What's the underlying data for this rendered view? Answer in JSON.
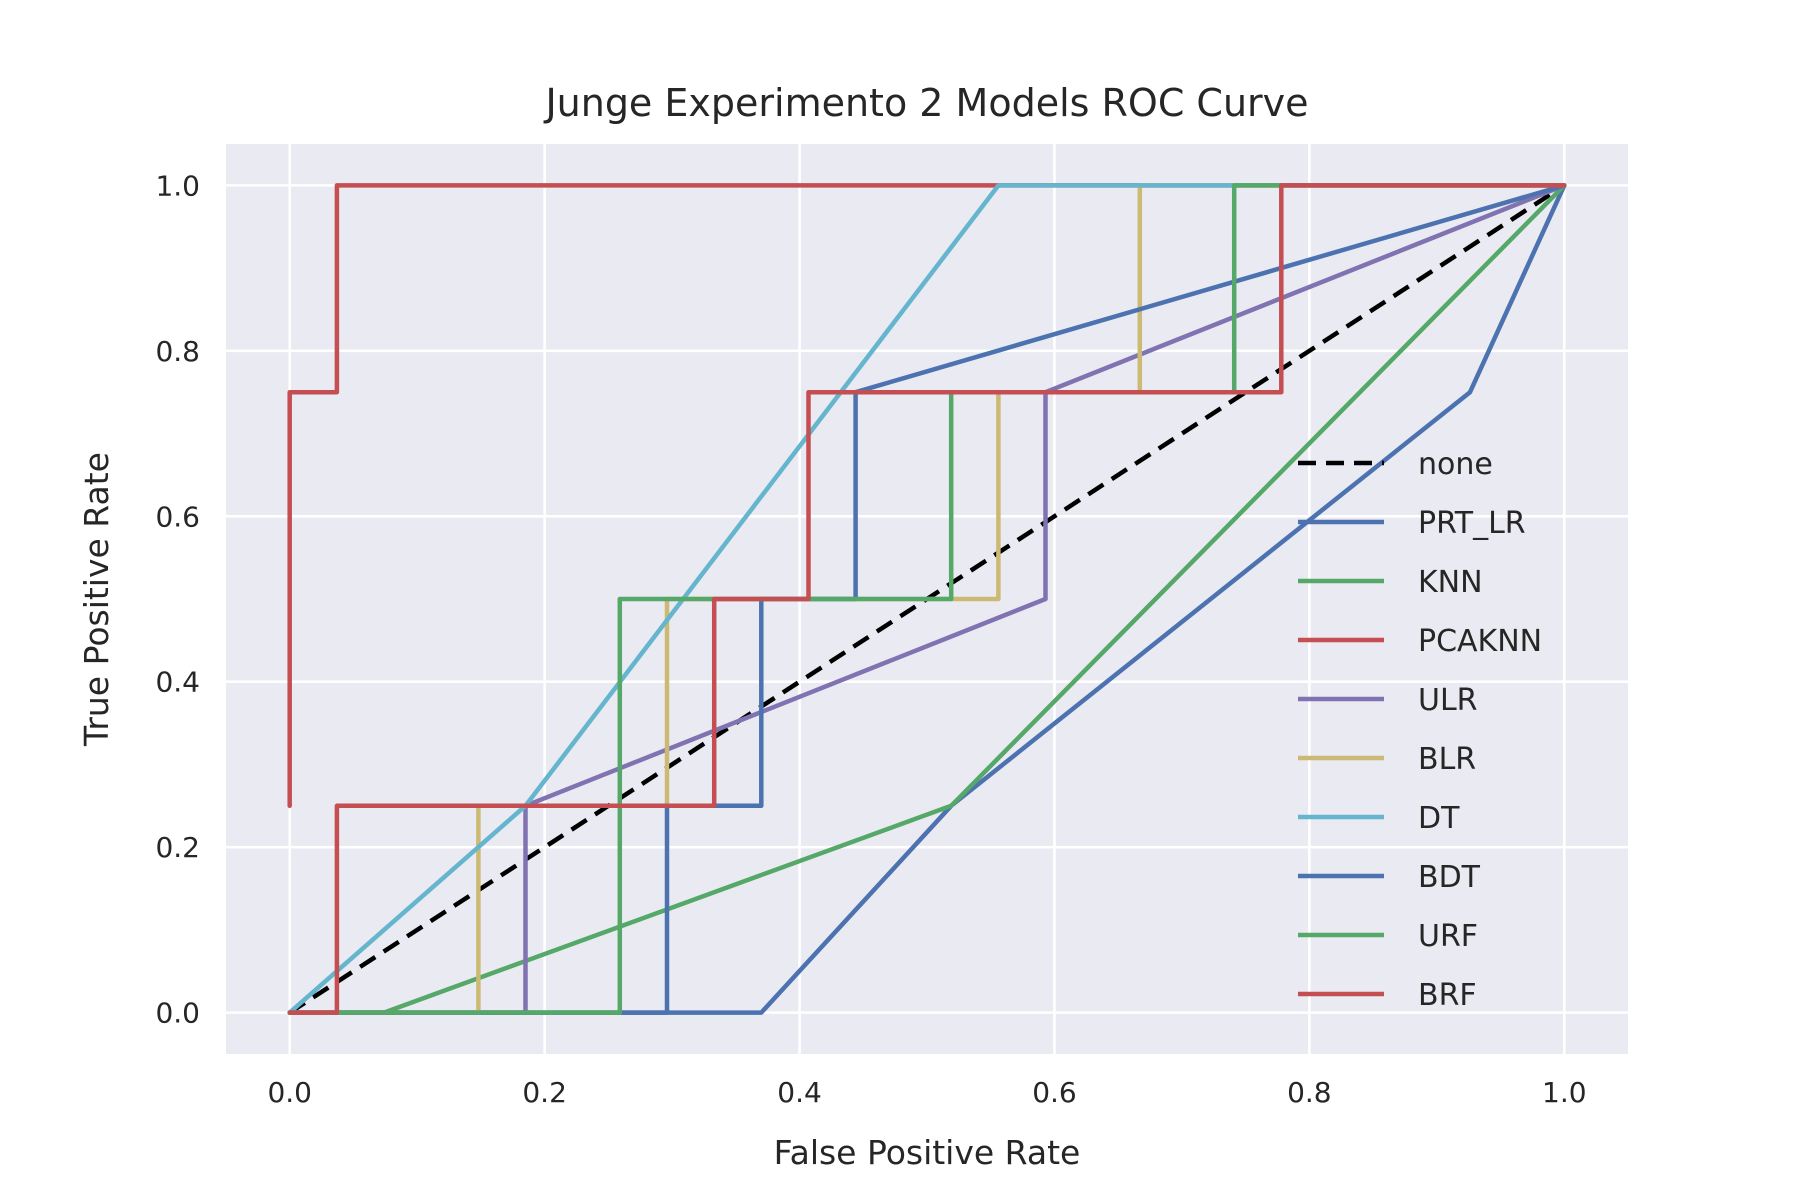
{
  "chart_data": {
    "type": "line",
    "title": "Junge Experimento 2 Models ROC Curve",
    "xlabel": "False Positive Rate",
    "ylabel": "True Positive Rate",
    "xlim": [
      -0.05,
      1.05
    ],
    "ylim": [
      -0.05,
      1.05
    ],
    "xticks": [
      0.0,
      0.2,
      0.4,
      0.6,
      0.8,
      1.0
    ],
    "yticks": [
      0.0,
      0.2,
      0.4,
      0.6,
      0.8,
      1.0
    ],
    "grid": true,
    "legend_position": "center-right",
    "background_color": "#eaeaf2",
    "series": [
      {
        "name": "none",
        "color": "#000000",
        "dashed": true,
        "x": [
          0,
          1
        ],
        "y": [
          0,
          1
        ]
      },
      {
        "name": "PRT_LR",
        "color": "#4c72b0",
        "x": [
          0,
          0.037,
          0.074,
          0.37,
          0.519,
          0.926,
          1.0
        ],
        "y": [
          0,
          0,
          0,
          0,
          0.25,
          0.75,
          1.0
        ]
      },
      {
        "name": "KNN",
        "color": "#55a868",
        "x": [
          0,
          0.074,
          0.519,
          1.0
        ],
        "y": [
          0,
          0,
          0.25,
          1.0
        ]
      },
      {
        "name": "PCAKNN",
        "color": "#c44e52",
        "x": [
          0,
          0,
          0.037,
          0.037,
          1.0
        ],
        "y": [
          0.25,
          0.75,
          0.75,
          1.0,
          1.0
        ]
      },
      {
        "name": "ULR",
        "color": "#8172b2",
        "x": [
          0,
          0.185,
          0.185,
          0.593,
          0.593,
          1.0
        ],
        "y": [
          0,
          0,
          0.25,
          0.5,
          0.75,
          1.0
        ]
      },
      {
        "name": "BLR",
        "color": "#ccb974",
        "x": [
          0,
          0.148,
          0.148,
          0.296,
          0.296,
          0.556,
          0.556,
          0.667,
          0.667,
          1.0
        ],
        "y": [
          0,
          0,
          0.25,
          0.25,
          0.5,
          0.5,
          0.75,
          0.75,
          1.0,
          1.0
        ]
      },
      {
        "name": "DT",
        "color": "#64b5cd",
        "x": [
          0,
          0.185,
          0.556,
          1.0
        ],
        "y": [
          0,
          0.25,
          1.0,
          1.0
        ]
      },
      {
        "name": "BDT",
        "color": "#4c72b0",
        "x": [
          0,
          0.296,
          0.296,
          0.37,
          0.37,
          0.444,
          0.444,
          1.0
        ],
        "y": [
          0,
          0,
          0.25,
          0.25,
          0.5,
          0.5,
          0.75,
          1.0
        ]
      },
      {
        "name": "URF",
        "color": "#55a868",
        "x": [
          0,
          0.259,
          0.259,
          0.519,
          0.519,
          0.741,
          0.741,
          1.0
        ],
        "y": [
          0,
          0,
          0.5,
          0.5,
          0.75,
          0.75,
          1.0,
          1.0
        ]
      },
      {
        "name": "BRF",
        "color": "#c44e52",
        "x": [
          0,
          0.037,
          0.037,
          0.333,
          0.333,
          0.407,
          0.407,
          0.778,
          0.778,
          1.0
        ],
        "y": [
          0,
          0,
          0.25,
          0.25,
          0.5,
          0.5,
          0.75,
          0.75,
          1.0,
          1.0
        ]
      }
    ]
  }
}
